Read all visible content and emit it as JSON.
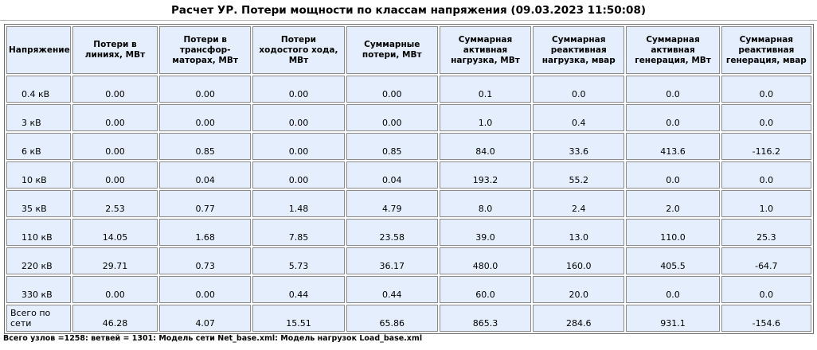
{
  "title": "Расчет УР. Потери мощности по классам напряжения (09.03.2023 11:50:08)",
  "table": {
    "headers": [
      "Напряжение",
      "Потери в линиях, МВт",
      "Потери в трансфор-маторах, МВт",
      "Потери ходостого хода, МВт",
      "Суммарные потери, МВт",
      "Суммарная активная нагрузка, МВт",
      "Суммарная реактивная нагрузка, мвар",
      "Суммарная активная генерация, МВт",
      "Суммарная реактивная генерация, мвар"
    ],
    "rows": [
      [
        "0.4 кВ",
        "0.00",
        "0.00",
        "0.00",
        "0.00",
        "0.1",
        "0.0",
        "0.0",
        "0.0"
      ],
      [
        "3 кВ",
        "0.00",
        "0.00",
        "0.00",
        "0.00",
        "1.0",
        "0.4",
        "0.0",
        "0.0"
      ],
      [
        "6 кВ",
        "0.00",
        "0.85",
        "0.00",
        "0.85",
        "84.0",
        "33.6",
        "413.6",
        "-116.2"
      ],
      [
        "10 кВ",
        "0.00",
        "0.04",
        "0.00",
        "0.04",
        "193.2",
        "55.2",
        "0.0",
        "0.0"
      ],
      [
        "35 кВ",
        "2.53",
        "0.77",
        "1.48",
        "4.79",
        "8.0",
        "2.4",
        "2.0",
        "1.0"
      ],
      [
        "110 кВ",
        "14.05",
        "1.68",
        "7.85",
        "23.58",
        "39.0",
        "13.0",
        "110.0",
        "25.3"
      ],
      [
        "220 кВ",
        "29.71",
        "0.73",
        "5.73",
        "36.17",
        "480.0",
        "160.0",
        "405.5",
        "-64.7"
      ],
      [
        "330 кВ",
        "0.00",
        "0.00",
        "0.44",
        "0.44",
        "60.0",
        "20.0",
        "0.0",
        "0.0"
      ],
      [
        "Всего по сети",
        "46.28",
        "4.07",
        "15.51",
        "65.86",
        "865.3",
        "284.6",
        "931.1",
        "-154.6"
      ]
    ]
  },
  "footer": "Всего узлов =1258: ветвей = 1301: Модель сети Net_base.xml: Модель нагрузок Load_base.xml"
}
